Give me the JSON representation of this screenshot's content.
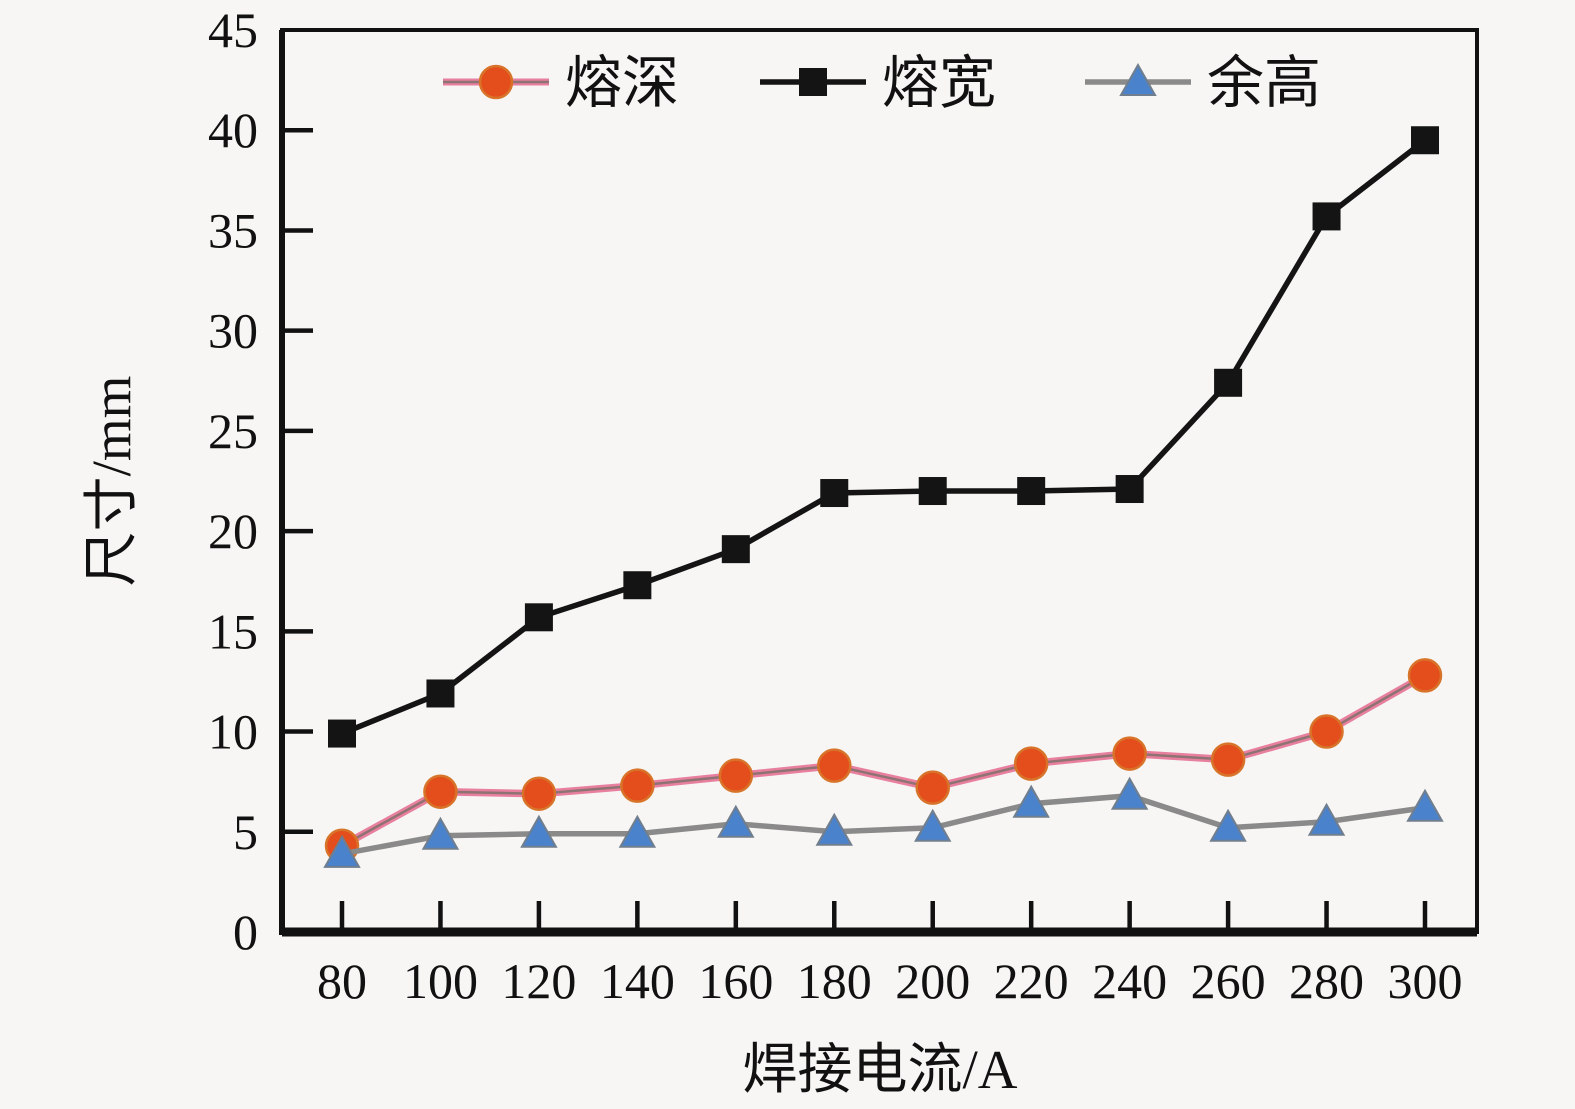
{
  "figure": {
    "background_color": "#f7f6f4",
    "axis_color": "#111111"
  },
  "chart_data": {
    "type": "line",
    "title": "",
    "xlabel": "焊接电流/A",
    "ylabel": "尺寸/mm",
    "categories": [
      80,
      100,
      120,
      140,
      160,
      180,
      200,
      220,
      240,
      260,
      280,
      300
    ],
    "xtick_labels": [
      "80",
      "100",
      "120",
      "140",
      "160",
      "180",
      "200",
      "220",
      "240",
      "260",
      "280",
      "300"
    ],
    "yticks": [
      0,
      5,
      10,
      15,
      20,
      25,
      30,
      35,
      40,
      45
    ],
    "ylim": [
      0,
      45
    ],
    "grid": false,
    "legend_position": "top-inside-horizontal",
    "series": [
      {
        "name": "熔深",
        "marker": "circle",
        "line_color": "#e87f9f",
        "line_core_color": "#8f7272",
        "marker_fill": "#e44d1c",
        "marker_stroke": "#d8742a",
        "values": [
          4.3,
          7.0,
          6.9,
          7.3,
          7.8,
          8.3,
          7.2,
          8.4,
          8.9,
          8.6,
          10.0,
          12.8
        ]
      },
      {
        "name": "熔宽",
        "marker": "square",
        "line_color": "#141414",
        "line_core_color": "#141414",
        "marker_fill": "#141414",
        "marker_stroke": "#141414",
        "values": [
          9.9,
          11.9,
          15.7,
          17.3,
          19.1,
          21.9,
          22.0,
          22.0,
          22.1,
          27.4,
          35.7,
          39.5
        ]
      },
      {
        "name": "余高",
        "marker": "triangle",
        "line_color": "#8a8a8a",
        "line_core_color": "#8a8a8a",
        "marker_fill": "#4a82cc",
        "marker_stroke": "#707e8e",
        "values": [
          3.9,
          4.8,
          4.9,
          4.9,
          5.4,
          5.0,
          5.2,
          6.4,
          6.8,
          5.2,
          5.5,
          6.2
        ]
      }
    ]
  }
}
